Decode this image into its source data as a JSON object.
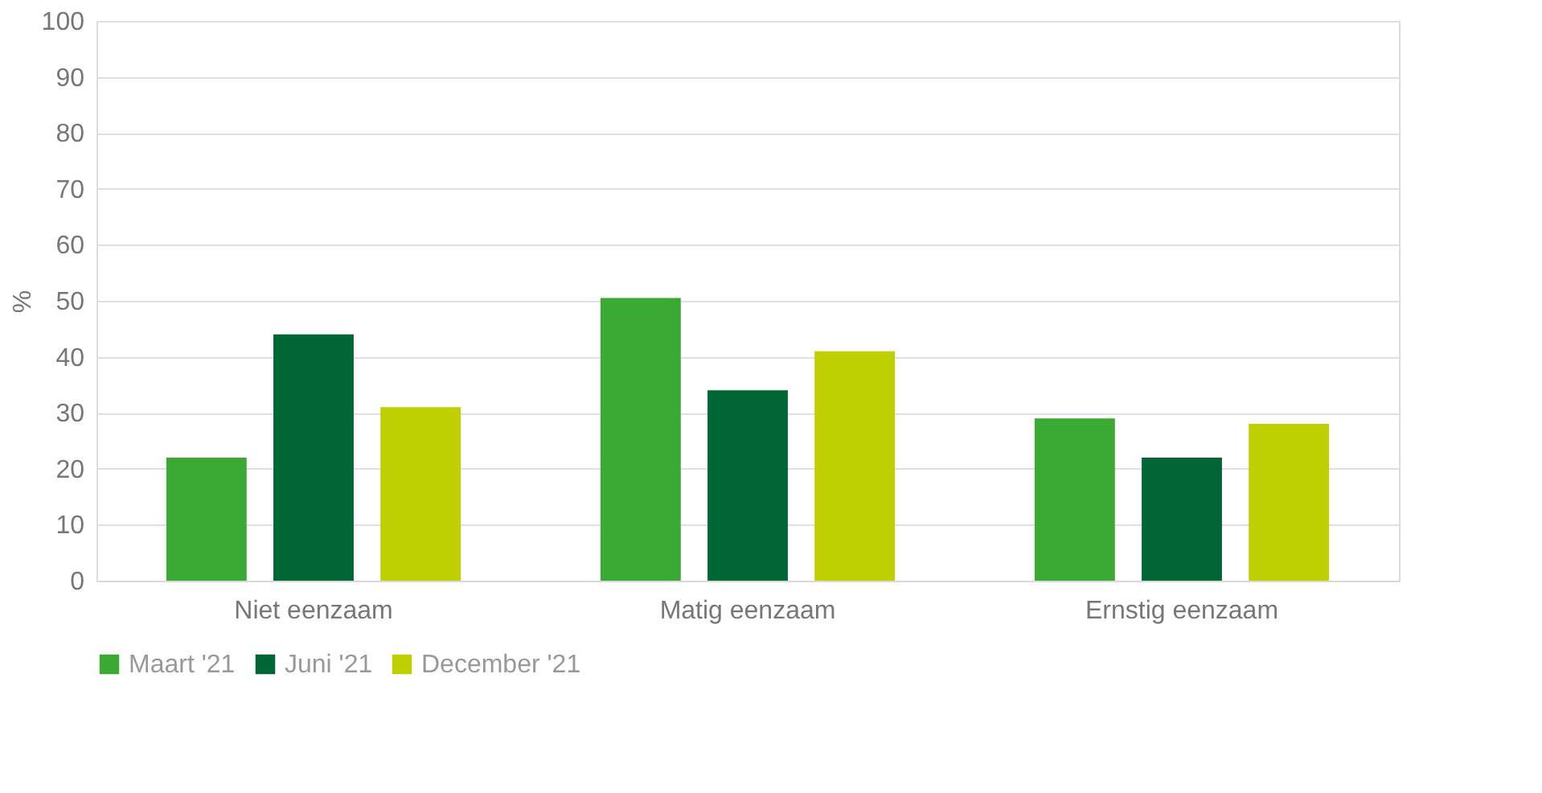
{
  "chart_data": {
    "type": "bar",
    "ylabel": "%",
    "categories": [
      "Niet eenzaam",
      "Matig eenzaam",
      "Ernstig eenzaam"
    ],
    "series": [
      {
        "name": "Maart '21",
        "color": "#3aaa35",
        "values": [
          22,
          50.5,
          29
        ]
      },
      {
        "name": "Juni '21",
        "color": "#006633",
        "values": [
          44,
          34,
          22
        ]
      },
      {
        "name": "December '21",
        "color": "#bed000",
        "values": [
          31,
          41,
          28
        ]
      }
    ],
    "ylim": [
      0,
      100
    ],
    "yticks": [
      0,
      10,
      20,
      30,
      40,
      50,
      60,
      70,
      80,
      90,
      100
    ],
    "grid": "y",
    "legend": "bottom"
  }
}
